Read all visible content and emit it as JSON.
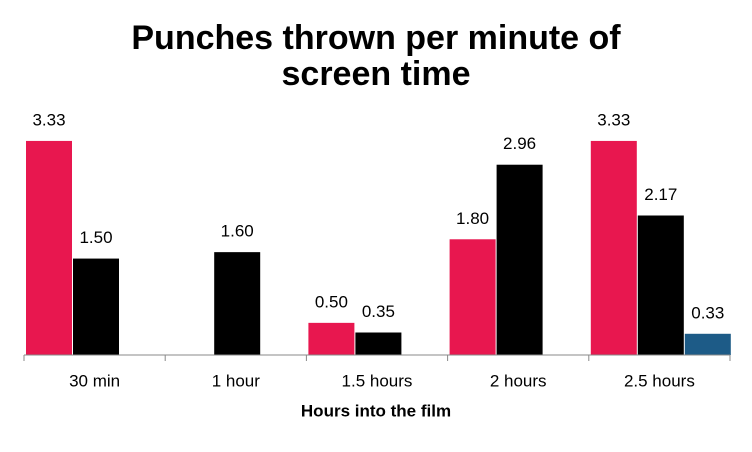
{
  "chart_data": {
    "type": "bar",
    "title": "Punches thrown per minute of screen time",
    "x_label": "Hours into the film",
    "categories": [
      "30 min",
      "1 hour",
      "1.5 hours",
      "2 hours",
      "2.5 hours"
    ],
    "series": [
      {
        "color": "#e8174f",
        "values": [
          3.33,
          null,
          0.5,
          1.8,
          3.33
        ],
        "value_labels": [
          "3.33",
          null,
          "0.50",
          "1.80",
          "3.33"
        ]
      },
      {
        "color": "#000000",
        "values": [
          1.5,
          1.6,
          0.35,
          2.96,
          2.17
        ],
        "value_labels": [
          "1.50",
          "1.60",
          "0.35",
          "2.96",
          "2.17"
        ]
      },
      {
        "color": "#1d5b87",
        "values": [
          null,
          null,
          null,
          null,
          0.33
        ],
        "value_labels": [
          null,
          null,
          null,
          null,
          "0.33"
        ]
      }
    ],
    "ylim": [
      0,
      3.5
    ]
  }
}
